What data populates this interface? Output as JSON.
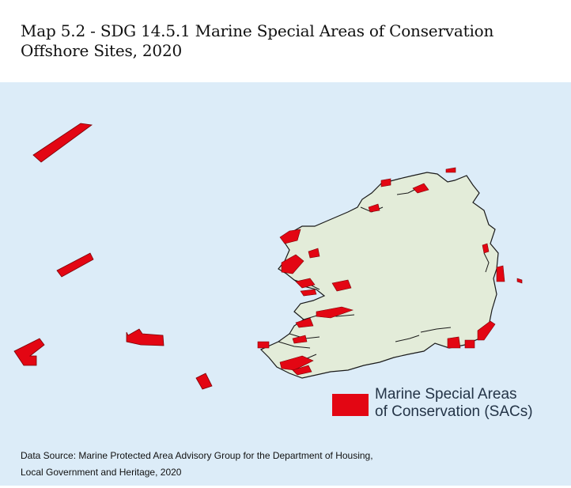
{
  "title": {
    "line1": "Map 5.2 - SDG 14.5.1 Marine Special Areas of Conservation",
    "line2": "Offshore Sites, 2020"
  },
  "legend": {
    "label_line1": "Marine Special Areas",
    "label_line2": "of Conservation (SACs)",
    "swatch_color": "#e30613"
  },
  "source": {
    "line1": "Data Source: Marine Protected Area Advisory Group for the Department of Housing,",
    "line2": "Local Government and Heritage, 2020"
  },
  "colors": {
    "sea": "#dcecf8",
    "land": "#e3ecd9",
    "sac": "#e30613",
    "outline": "#1a1a1a"
  }
}
